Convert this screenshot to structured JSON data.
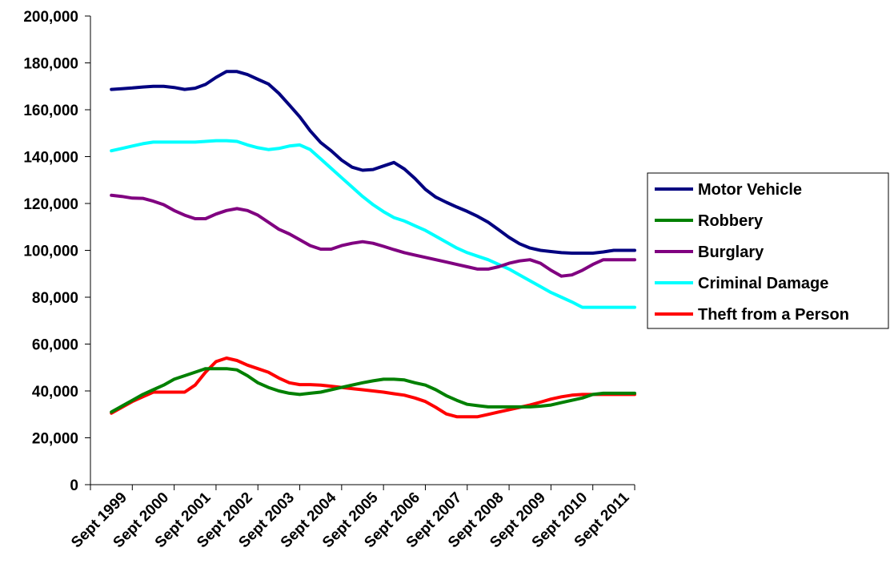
{
  "chart_data": {
    "type": "line",
    "title": "",
    "xlabel": "",
    "ylabel": "",
    "ylim": [
      0,
      200000
    ],
    "y_ticks": [
      0,
      20000,
      40000,
      60000,
      80000,
      100000,
      120000,
      140000,
      160000,
      180000,
      200000
    ],
    "y_tick_labels": [
      "0",
      "20,000",
      "40,000",
      "60,000",
      "80,000",
      "100,000",
      "120,000",
      "140,000",
      "160,000",
      "180,000",
      "200,000"
    ],
    "categories": [
      "Sept 1999",
      "Sept 2000",
      "Sept 2001",
      "Sept 2002",
      "Sept 2003",
      "Sept 2004",
      "Sept 2005",
      "Sept 2006",
      "Sept 2007",
      "Sept 2008",
      "Sept 2009",
      "Sept 2010",
      "Sept 2011"
    ],
    "x": [
      0,
      0.25,
      0.5,
      0.75,
      1,
      1.25,
      1.5,
      1.75,
      2,
      2.25,
      2.5,
      2.75,
      3,
      3.25,
      3.5,
      3.75,
      4,
      4.25,
      4.5,
      4.75,
      5,
      5.25,
      5.5,
      5.75,
      6,
      6.25,
      6.5,
      6.75,
      7,
      7.25,
      7.5,
      7.75,
      8,
      8.25,
      8.5,
      8.75,
      9,
      9.25,
      9.5,
      9.75,
      10,
      10.25,
      10.5,
      10.75,
      11,
      11.25,
      11.5,
      11.75,
      12,
      12.25,
      12.5
    ],
    "grid": false,
    "legend_position": "right",
    "series": [
      {
        "name": "Motor Vehicle",
        "color": "#000080",
        "values": [
          168700,
          169000,
          169300,
          169700,
          170000,
          170000,
          169500,
          168700,
          169200,
          170800,
          173800,
          176300,
          176300,
          175000,
          173000,
          171000,
          167000,
          162000,
          157000,
          151000,
          146000,
          142500,
          138500,
          135500,
          134200,
          134500,
          136000,
          137500,
          134700,
          130700,
          126000,
          122700,
          120500,
          118500,
          116600,
          114500,
          112000,
          108800,
          105500,
          102800,
          101000,
          100000,
          99500,
          99000,
          98800,
          98800,
          98800,
          99300,
          100000,
          100000,
          100000
        ]
      },
      {
        "name": "Robbery",
        "color": "#008000",
        "values": [
          31000,
          33500,
          36000,
          38500,
          40500,
          42500,
          45000,
          46500,
          48000,
          49500,
          49500,
          49500,
          49000,
          46500,
          43500,
          41500,
          40000,
          39000,
          38500,
          39000,
          39500,
          40500,
          41500,
          42500,
          43500,
          44300,
          45000,
          45000,
          44700,
          43500,
          42500,
          40500,
          38000,
          36000,
          34300,
          33700,
          33200,
          33200,
          33200,
          33200,
          33200,
          33500,
          34000,
          35000,
          36000,
          37000,
          38500,
          39000,
          39000,
          39000,
          39000
        ]
      },
      {
        "name": "Burglary",
        "color": "#800080",
        "values": [
          123500,
          123000,
          122300,
          122200,
          121000,
          119500,
          117000,
          115000,
          113500,
          113500,
          115500,
          117000,
          117800,
          117000,
          115000,
          112000,
          109000,
          107000,
          104500,
          102000,
          100500,
          100500,
          102000,
          103000,
          103700,
          103000,
          101700,
          100300,
          99000,
          98000,
          97000,
          96000,
          95000,
          94000,
          93000,
          92000,
          92000,
          93000,
          94500,
          95500,
          96000,
          94500,
          91500,
          89000,
          89500,
          91500,
          94000,
          96000,
          96000,
          96000,
          96000
        ]
      },
      {
        "name": "Criminal Damage",
        "color": "#00FFFF",
        "values": [
          142500,
          143500,
          144500,
          145500,
          146200,
          146200,
          146200,
          146200,
          146200,
          146500,
          146800,
          146800,
          146500,
          145000,
          143800,
          143000,
          143500,
          144500,
          145000,
          143000,
          139000,
          135000,
          131000,
          127000,
          123000,
          119500,
          116500,
          114000,
          112500,
          110500,
          108500,
          106000,
          103500,
          101000,
          99000,
          97500,
          96000,
          94000,
          92000,
          89500,
          87000,
          84500,
          82000,
          80000,
          78000,
          75700,
          75700,
          75700,
          75700,
          75700,
          75700
        ]
      },
      {
        "name": "Theft from a Person",
        "color": "#FF0000",
        "values": [
          30500,
          33000,
          35500,
          37500,
          39500,
          39500,
          39500,
          39500,
          42500,
          48000,
          52500,
          54000,
          53000,
          51000,
          49500,
          48000,
          45500,
          43500,
          42700,
          42700,
          42500,
          42000,
          41500,
          41000,
          40500,
          40000,
          39500,
          38800,
          38200,
          37000,
          35500,
          33000,
          30200,
          29000,
          29000,
          29000,
          30000,
          31000,
          32000,
          33000,
          34000,
          35200,
          36500,
          37500,
          38200,
          38500,
          38500,
          38500,
          38500,
          38500,
          38500
        ]
      }
    ]
  }
}
